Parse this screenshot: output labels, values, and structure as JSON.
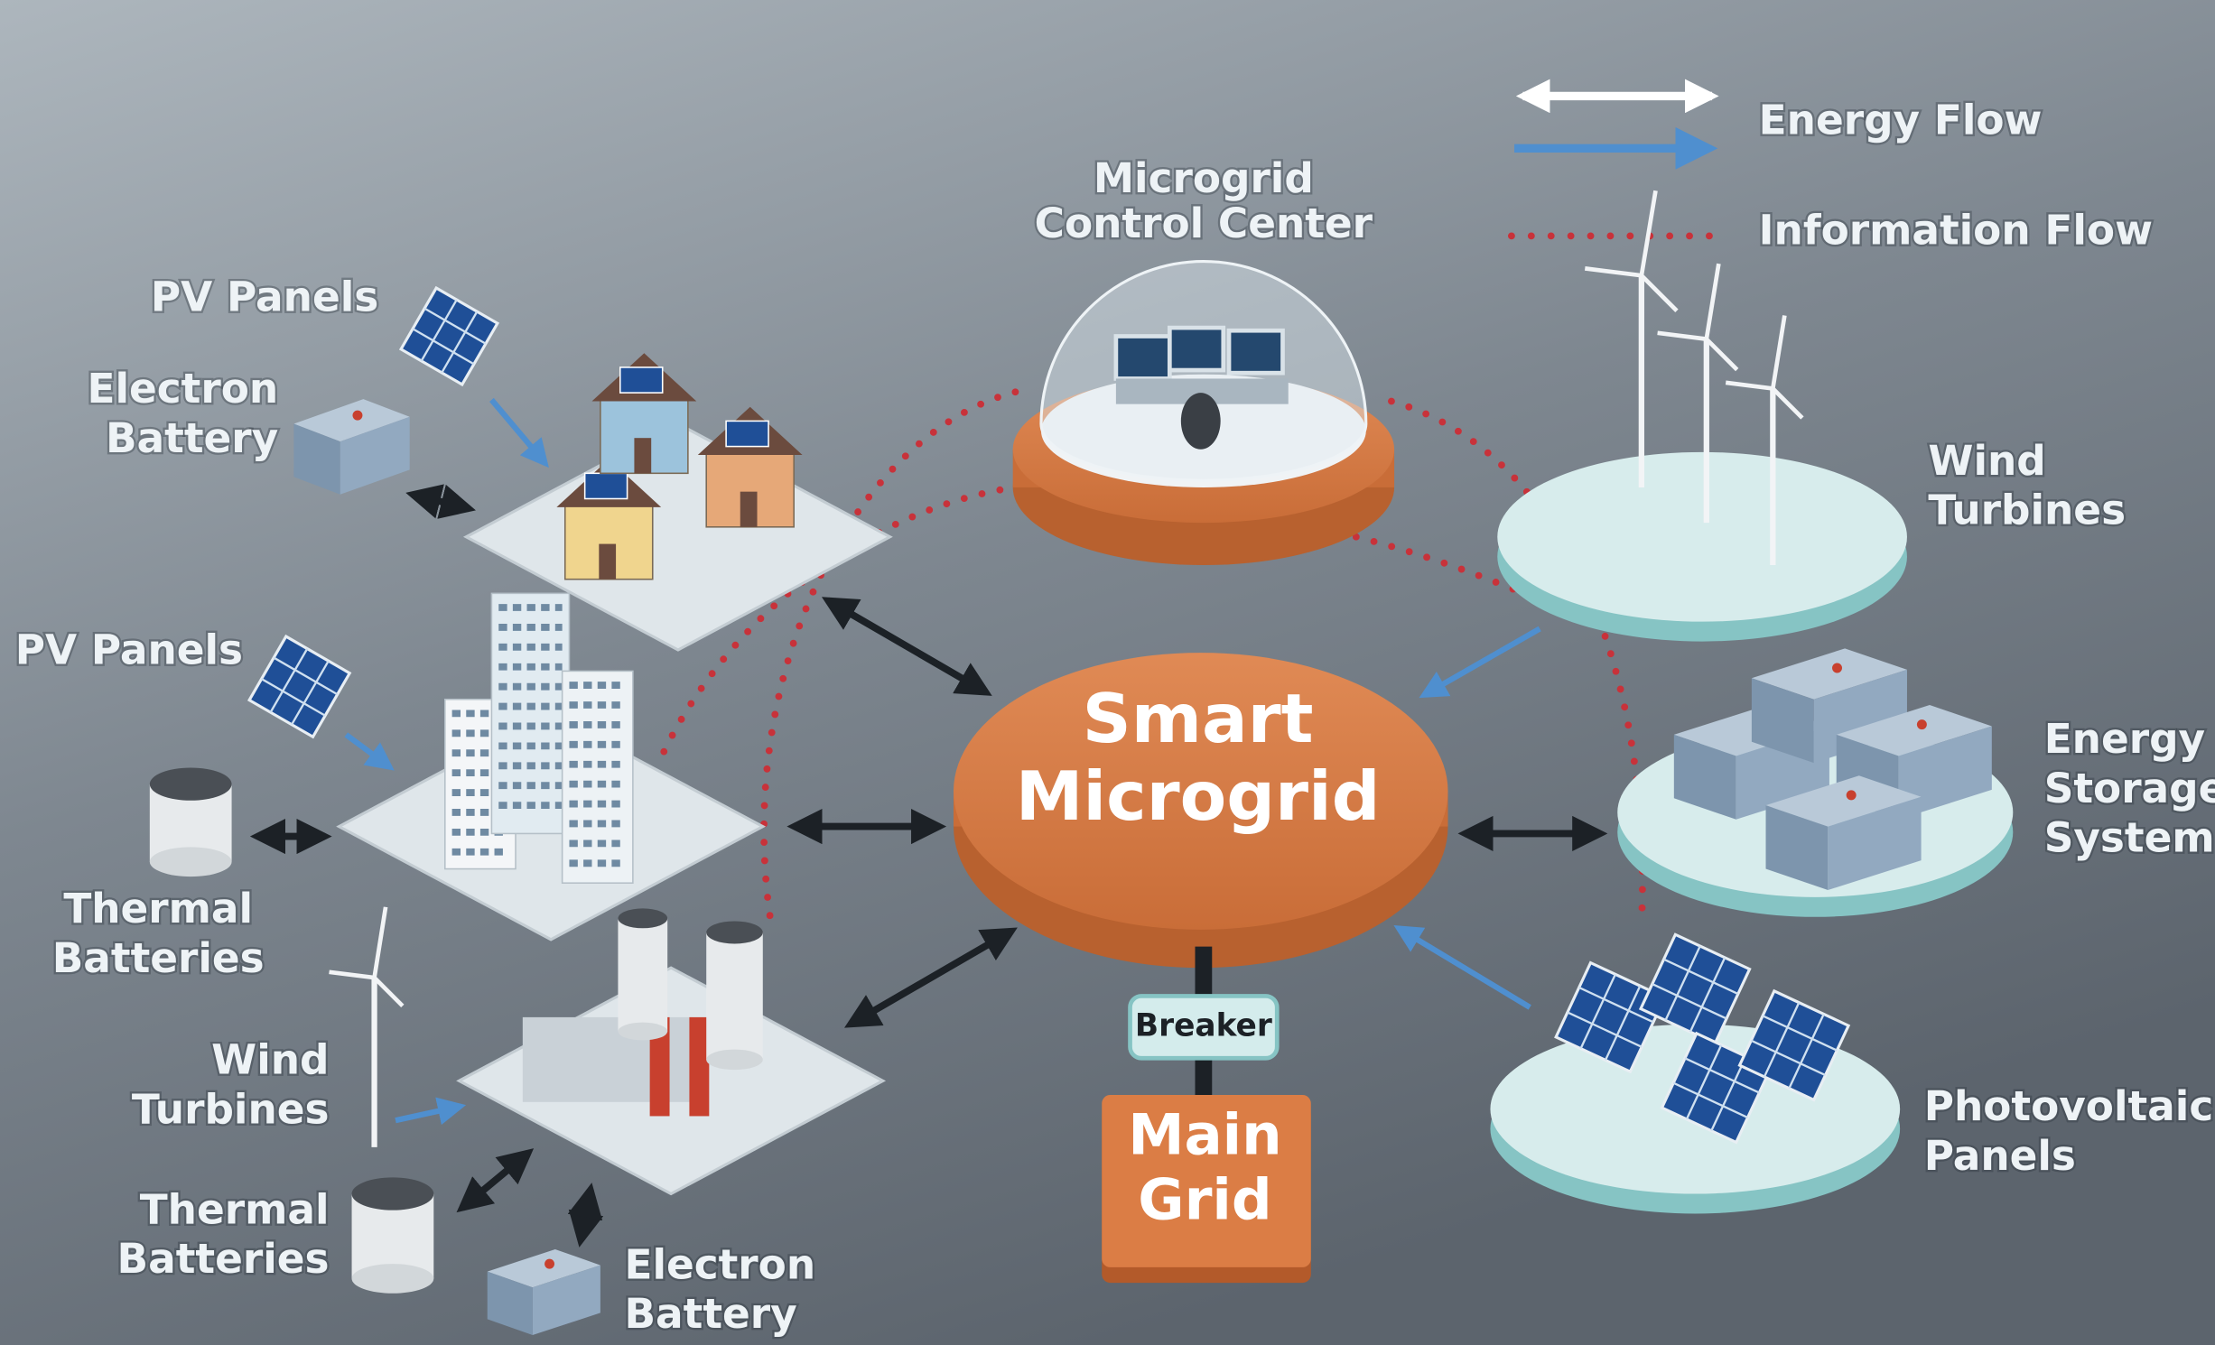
{
  "legend": {
    "energy_flow": "Energy Flow",
    "information_flow": "Information Flow"
  },
  "control_center": {
    "lines": [
      "Microgrid",
      "Control Center"
    ]
  },
  "center": {
    "lines": [
      "Smart",
      "Microgrid"
    ]
  },
  "breaker": "Breaker",
  "main_grid": {
    "lines": [
      "Main",
      "Grid"
    ]
  },
  "nodes": [
    {
      "lines": [
        "PV Panels"
      ]
    },
    {
      "lines": [
        "Electron",
        "Battery"
      ]
    },
    {
      "lines": [
        "PV Panels"
      ]
    },
    {
      "lines": [
        "Thermal",
        "Batteries"
      ]
    },
    {
      "lines": [
        "Wind",
        "Turbines"
      ]
    },
    {
      "lines": [
        "Thermal",
        "Batteries"
      ]
    },
    {
      "lines": [
        "Electron",
        "Battery"
      ]
    },
    {
      "lines": [
        "Wind",
        "Turbines"
      ]
    },
    {
      "lines": [
        "Energy",
        "Storage",
        "System"
      ]
    },
    {
      "lines": [
        "Photovoltaic",
        "Panels"
      ]
    }
  ]
}
